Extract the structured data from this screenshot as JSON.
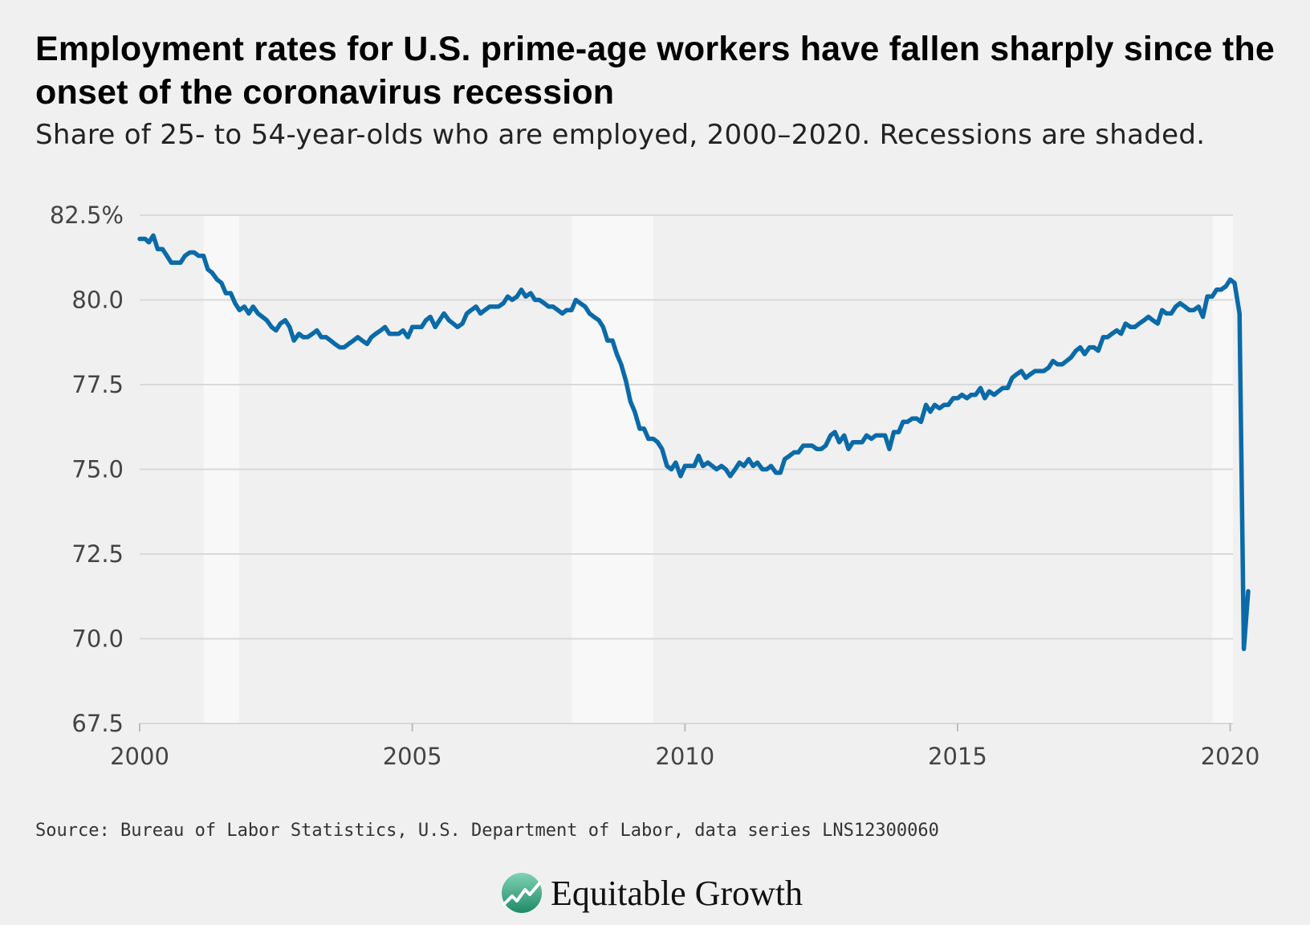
{
  "header": {
    "title": "Employment rates for U.S. prime-age workers have fallen sharply since the onset of the coronavirus recession",
    "subtitle": "Share of 25- to 54-year-olds who are employed, 2000–2020. Recessions are shaded."
  },
  "chart_data": {
    "type": "line",
    "title": "Employment rates for U.S. prime-age workers have fallen sharply since the onset of the coronavirus recession",
    "subtitle": "Share of 25- to 54-year-olds who are employed, 2000–2020. Recessions are shaded.",
    "xlabel": "",
    "ylabel": "",
    "xlim": [
      2000,
      2020.05
    ],
    "ylim": [
      67.5,
      82.5
    ],
    "x_ticks": [
      {
        "value": 2000,
        "label": "2000"
      },
      {
        "value": 2005,
        "label": "2005"
      },
      {
        "value": 2010,
        "label": "2010"
      },
      {
        "value": 2015,
        "label": "2015"
      },
      {
        "value": 2020,
        "label": "2020"
      }
    ],
    "y_ticks": [
      {
        "value": 82.5,
        "label": "82.5%"
      },
      {
        "value": 80.0,
        "label": "80.0"
      },
      {
        "value": 77.5,
        "label": "77.5"
      },
      {
        "value": 75.0,
        "label": "75.0"
      },
      {
        "value": 72.5,
        "label": "72.5"
      },
      {
        "value": 70.0,
        "label": "70.0"
      },
      {
        "value": 67.5,
        "label": "67.5"
      }
    ],
    "grid": "horizontal",
    "recessions": [
      {
        "start": 2001.17,
        "end": 2001.83
      },
      {
        "start": 2007.92,
        "end": 2009.42
      },
      {
        "start": 2019.67,
        "end": 2020.05
      }
    ],
    "series": [
      {
        "color": "#0b6aa8",
        "points": [
          [
            2000.0,
            81.8
          ],
          [
            2000.1,
            81.8
          ],
          [
            2000.17,
            81.7
          ],
          [
            2000.25,
            81.9
          ],
          [
            2000.33,
            81.5
          ],
          [
            2000.42,
            81.5
          ],
          [
            2000.5,
            81.3
          ],
          [
            2000.58,
            81.1
          ],
          [
            2000.67,
            81.1
          ],
          [
            2000.75,
            81.1
          ],
          [
            2000.83,
            81.3
          ],
          [
            2000.92,
            81.4
          ],
          [
            2001.0,
            81.4
          ],
          [
            2001.08,
            81.3
          ],
          [
            2001.17,
            81.3
          ],
          [
            2001.25,
            80.9
          ],
          [
            2001.33,
            80.8
          ],
          [
            2001.42,
            80.6
          ],
          [
            2001.5,
            80.5
          ],
          [
            2001.58,
            80.2
          ],
          [
            2001.67,
            80.2
          ],
          [
            2001.75,
            79.9
          ],
          [
            2001.83,
            79.7
          ],
          [
            2001.92,
            79.8
          ],
          [
            2002.0,
            79.6
          ],
          [
            2002.08,
            79.8
          ],
          [
            2002.17,
            79.6
          ],
          [
            2002.25,
            79.5
          ],
          [
            2002.33,
            79.4
          ],
          [
            2002.42,
            79.2
          ],
          [
            2002.5,
            79.1
          ],
          [
            2002.58,
            79.3
          ],
          [
            2002.67,
            79.4
          ],
          [
            2002.75,
            79.2
          ],
          [
            2002.83,
            78.8
          ],
          [
            2002.92,
            79.0
          ],
          [
            2003.0,
            78.9
          ],
          [
            2003.08,
            78.9
          ],
          [
            2003.17,
            79.0
          ],
          [
            2003.25,
            79.1
          ],
          [
            2003.33,
            78.9
          ],
          [
            2003.42,
            78.9
          ],
          [
            2003.5,
            78.8
          ],
          [
            2003.58,
            78.7
          ],
          [
            2003.67,
            78.6
          ],
          [
            2003.75,
            78.6
          ],
          [
            2003.83,
            78.7
          ],
          [
            2003.92,
            78.8
          ],
          [
            2004.0,
            78.9
          ],
          [
            2004.08,
            78.8
          ],
          [
            2004.17,
            78.7
          ],
          [
            2004.25,
            78.9
          ],
          [
            2004.33,
            79.0
          ],
          [
            2004.42,
            79.1
          ],
          [
            2004.5,
            79.2
          ],
          [
            2004.58,
            79.0
          ],
          [
            2004.67,
            79.0
          ],
          [
            2004.75,
            79.0
          ],
          [
            2004.83,
            79.1
          ],
          [
            2004.92,
            78.9
          ],
          [
            2005.0,
            79.2
          ],
          [
            2005.08,
            79.2
          ],
          [
            2005.17,
            79.2
          ],
          [
            2005.25,
            79.4
          ],
          [
            2005.33,
            79.5
          ],
          [
            2005.42,
            79.2
          ],
          [
            2005.5,
            79.4
          ],
          [
            2005.58,
            79.6
          ],
          [
            2005.67,
            79.4
          ],
          [
            2005.75,
            79.3
          ],
          [
            2005.83,
            79.2
          ],
          [
            2005.92,
            79.3
          ],
          [
            2006.0,
            79.6
          ],
          [
            2006.08,
            79.7
          ],
          [
            2006.17,
            79.8
          ],
          [
            2006.25,
            79.6
          ],
          [
            2006.33,
            79.7
          ],
          [
            2006.42,
            79.8
          ],
          [
            2006.5,
            79.8
          ],
          [
            2006.58,
            79.8
          ],
          [
            2006.67,
            79.9
          ],
          [
            2006.75,
            80.1
          ],
          [
            2006.83,
            80.0
          ],
          [
            2006.92,
            80.1
          ],
          [
            2007.0,
            80.3
          ],
          [
            2007.08,
            80.1
          ],
          [
            2007.17,
            80.2
          ],
          [
            2007.25,
            80.0
          ],
          [
            2007.33,
            80.0
          ],
          [
            2007.42,
            79.9
          ],
          [
            2007.5,
            79.8
          ],
          [
            2007.58,
            79.8
          ],
          [
            2007.67,
            79.7
          ],
          [
            2007.75,
            79.6
          ],
          [
            2007.83,
            79.7
          ],
          [
            2007.92,
            79.7
          ],
          [
            2008.0,
            80.0
          ],
          [
            2008.08,
            79.9
          ],
          [
            2008.17,
            79.8
          ],
          [
            2008.25,
            79.6
          ],
          [
            2008.33,
            79.5
          ],
          [
            2008.42,
            79.4
          ],
          [
            2008.5,
            79.2
          ],
          [
            2008.58,
            78.8
          ],
          [
            2008.67,
            78.8
          ],
          [
            2008.75,
            78.4
          ],
          [
            2008.83,
            78.1
          ],
          [
            2008.92,
            77.6
          ],
          [
            2009.0,
            77.0
          ],
          [
            2009.08,
            76.7
          ],
          [
            2009.17,
            76.2
          ],
          [
            2009.25,
            76.2
          ],
          [
            2009.33,
            75.9
          ],
          [
            2009.42,
            75.9
          ],
          [
            2009.5,
            75.8
          ],
          [
            2009.58,
            75.6
          ],
          [
            2009.67,
            75.1
          ],
          [
            2009.75,
            75.0
          ],
          [
            2009.83,
            75.2
          ],
          [
            2009.92,
            74.8
          ],
          [
            2010.0,
            75.1
          ],
          [
            2010.08,
            75.1
          ],
          [
            2010.17,
            75.1
          ],
          [
            2010.25,
            75.4
          ],
          [
            2010.33,
            75.1
          ],
          [
            2010.42,
            75.2
          ],
          [
            2010.5,
            75.1
          ],
          [
            2010.58,
            75.0
          ],
          [
            2010.67,
            75.1
          ],
          [
            2010.75,
            75.0
          ],
          [
            2010.83,
            74.8
          ],
          [
            2010.92,
            75.0
          ],
          [
            2011.0,
            75.2
          ],
          [
            2011.08,
            75.1
          ],
          [
            2011.17,
            75.3
          ],
          [
            2011.25,
            75.1
          ],
          [
            2011.33,
            75.2
          ],
          [
            2011.42,
            75.0
          ],
          [
            2011.5,
            75.0
          ],
          [
            2011.58,
            75.1
          ],
          [
            2011.67,
            74.9
          ],
          [
            2011.75,
            74.9
          ],
          [
            2011.83,
            75.3
          ],
          [
            2011.92,
            75.4
          ],
          [
            2012.0,
            75.5
          ],
          [
            2012.08,
            75.5
          ],
          [
            2012.17,
            75.7
          ],
          [
            2012.25,
            75.7
          ],
          [
            2012.33,
            75.7
          ],
          [
            2012.42,
            75.6
          ],
          [
            2012.5,
            75.6
          ],
          [
            2012.58,
            75.7
          ],
          [
            2012.67,
            76.0
          ],
          [
            2012.75,
            76.1
          ],
          [
            2012.83,
            75.8
          ],
          [
            2012.92,
            76.0
          ],
          [
            2013.0,
            75.6
          ],
          [
            2013.08,
            75.8
          ],
          [
            2013.17,
            75.8
          ],
          [
            2013.25,
            75.8
          ],
          [
            2013.33,
            76.0
          ],
          [
            2013.42,
            75.9
          ],
          [
            2013.5,
            76.0
          ],
          [
            2013.58,
            76.0
          ],
          [
            2013.67,
            76.0
          ],
          [
            2013.75,
            75.6
          ],
          [
            2013.83,
            76.1
          ],
          [
            2013.92,
            76.1
          ],
          [
            2014.0,
            76.4
          ],
          [
            2014.08,
            76.4
          ],
          [
            2014.17,
            76.5
          ],
          [
            2014.25,
            76.5
          ],
          [
            2014.33,
            76.4
          ],
          [
            2014.42,
            76.9
          ],
          [
            2014.5,
            76.7
          ],
          [
            2014.58,
            76.9
          ],
          [
            2014.67,
            76.8
          ],
          [
            2014.75,
            76.9
          ],
          [
            2014.83,
            76.9
          ],
          [
            2014.92,
            77.1
          ],
          [
            2015.0,
            77.1
          ],
          [
            2015.08,
            77.2
          ],
          [
            2015.17,
            77.1
          ],
          [
            2015.25,
            77.2
          ],
          [
            2015.33,
            77.2
          ],
          [
            2015.42,
            77.4
          ],
          [
            2015.5,
            77.1
          ],
          [
            2015.58,
            77.3
          ],
          [
            2015.67,
            77.2
          ],
          [
            2015.75,
            77.3
          ],
          [
            2015.83,
            77.4
          ],
          [
            2015.92,
            77.4
          ],
          [
            2016.0,
            77.7
          ],
          [
            2016.08,
            77.8
          ],
          [
            2016.17,
            77.9
          ],
          [
            2016.25,
            77.7
          ],
          [
            2016.33,
            77.8
          ],
          [
            2016.42,
            77.9
          ],
          [
            2016.5,
            77.9
          ],
          [
            2016.58,
            77.9
          ],
          [
            2016.67,
            78.0
          ],
          [
            2016.75,
            78.2
          ],
          [
            2016.83,
            78.1
          ],
          [
            2016.92,
            78.1
          ],
          [
            2017.0,
            78.2
          ],
          [
            2017.08,
            78.3
          ],
          [
            2017.17,
            78.5
          ],
          [
            2017.25,
            78.6
          ],
          [
            2017.33,
            78.4
          ],
          [
            2017.42,
            78.6
          ],
          [
            2017.5,
            78.6
          ],
          [
            2017.58,
            78.5
          ],
          [
            2017.67,
            78.9
          ],
          [
            2017.75,
            78.9
          ],
          [
            2017.83,
            79.0
          ],
          [
            2017.92,
            79.1
          ],
          [
            2018.0,
            79.0
          ],
          [
            2018.08,
            79.3
          ],
          [
            2018.17,
            79.2
          ],
          [
            2018.25,
            79.2
          ],
          [
            2018.33,
            79.3
          ],
          [
            2018.42,
            79.4
          ],
          [
            2018.5,
            79.5
          ],
          [
            2018.58,
            79.4
          ],
          [
            2018.67,
            79.3
          ],
          [
            2018.75,
            79.7
          ],
          [
            2018.83,
            79.6
          ],
          [
            2018.92,
            79.6
          ],
          [
            2019.0,
            79.8
          ],
          [
            2019.08,
            79.9
          ],
          [
            2019.17,
            79.8
          ],
          [
            2019.25,
            79.7
          ],
          [
            2019.33,
            79.7
          ],
          [
            2019.42,
            79.8
          ],
          [
            2019.5,
            79.5
          ],
          [
            2019.58,
            80.1
          ],
          [
            2019.67,
            80.1
          ],
          [
            2019.75,
            80.3
          ],
          [
            2019.83,
            80.3
          ],
          [
            2019.92,
            80.4
          ],
          [
            2020.0,
            80.6
          ],
          [
            2020.08,
            80.5
          ],
          [
            2020.17,
            79.6
          ],
          [
            2020.25,
            69.7
          ],
          [
            2020.33,
            71.4
          ]
        ]
      }
    ]
  },
  "source": "Source: Bureau of Labor Statistics, U.S. Department of Labor, data series LNS12300060",
  "brand": {
    "name": "Equitable Growth",
    "logo_icon": "equitable-growth-logo-icon",
    "logo_color": "#2e9a7a"
  }
}
